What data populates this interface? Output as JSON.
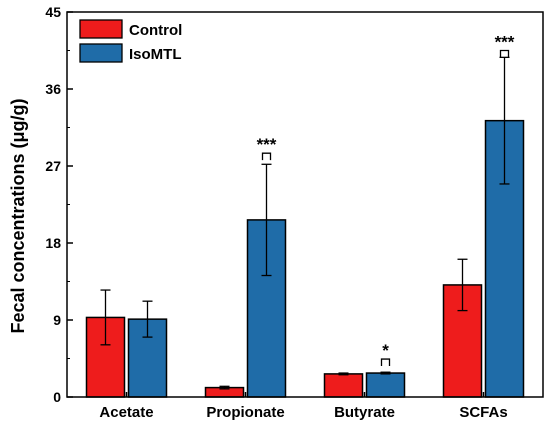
{
  "chart_data": {
    "type": "bar",
    "ylabel": "Fecal concentrations (μg/g)",
    "ylim": [
      0,
      45
    ],
    "yticks": [
      0,
      9,
      18,
      27,
      36,
      45
    ],
    "categories": [
      "Acetate",
      "Propionate",
      "Butyrate",
      "SCFAs"
    ],
    "legend_position": "top-left",
    "series": [
      {
        "name": "Control",
        "color": "#ee1c1c",
        "values": [
          9.3,
          1.1,
          2.7,
          13.1
        ],
        "errors": [
          3.2,
          0.15,
          0.1,
          3.0
        ]
      },
      {
        "name": "IsoMTL",
        "color": "#1f6ca8",
        "values": [
          9.1,
          20.7,
          2.8,
          32.3
        ],
        "errors": [
          2.1,
          6.5,
          0.1,
          7.4
        ]
      }
    ],
    "significance": [
      {
        "category": "Propionate",
        "label": "***"
      },
      {
        "category": "Butyrate",
        "label": "*"
      },
      {
        "category": "SCFAs",
        "label": "***"
      }
    ]
  }
}
